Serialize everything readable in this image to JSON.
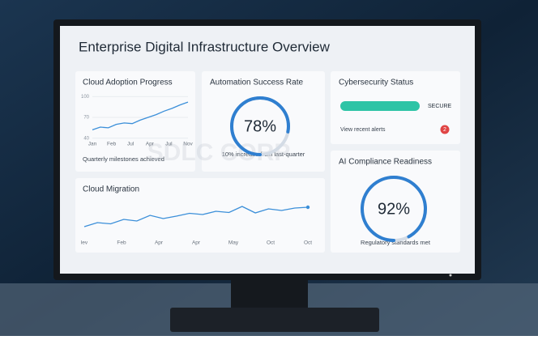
{
  "title": "Enterprise Digital Infrastructure Overview",
  "watermark": "SDLC CORP",
  "adoption": {
    "title": "Cloud Adoption Progress",
    "caption": "Quarterly milestones achieved",
    "xlabels": [
      "Jan",
      "Feb",
      "Jul",
      "Apr",
      "Jul",
      "Nov"
    ],
    "yticks": [
      100,
      70,
      40
    ],
    "ylim": [
      35,
      105
    ],
    "values": [
      52,
      56,
      55,
      60,
      62,
      61,
      66,
      70,
      74,
      79,
      83,
      88,
      92
    ],
    "color": "#3b8fd9"
  },
  "automation": {
    "title": "Automation Success Rate",
    "value": 78,
    "value_label": "78%",
    "caption": "10% increase from last-quarter",
    "color": "#2f7fd0"
  },
  "security": {
    "title": "Cybersecurity Status",
    "status": "SECURE",
    "link": "View recent alerts",
    "alerts": 2,
    "color": "#2ec4a6"
  },
  "migration": {
    "title": "Cloud Migration",
    "xlabels": [
      "lev",
      "Feb",
      "Apr",
      "Apr",
      "May",
      "Oct",
      "Oct"
    ],
    "ylim": [
      0,
      100
    ],
    "values": [
      20,
      30,
      27,
      38,
      34,
      48,
      40,
      46,
      53,
      50,
      58,
      55,
      70,
      54,
      64,
      60,
      66,
      68
    ],
    "color": "#3b8fd9"
  },
  "compliance": {
    "title": "AI Compliance Readiness",
    "value": 92,
    "value_label": "92%",
    "caption": "Regulatory standards met",
    "color": "#2f7fd0"
  }
}
